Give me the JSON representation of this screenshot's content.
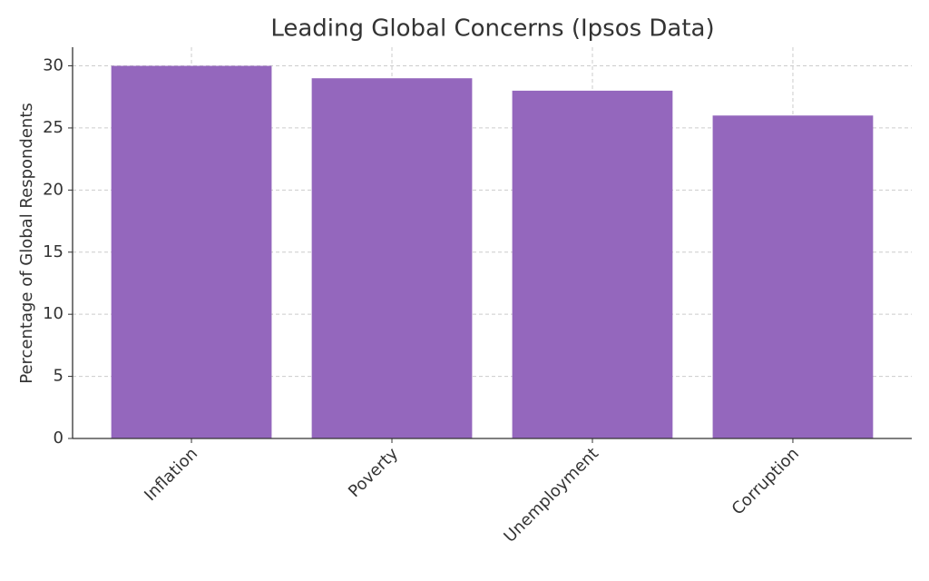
{
  "chart_data": {
    "type": "bar",
    "title": "Leading Global Concerns (Ipsos Data)",
    "y_label": "Percentage of Global Respondents",
    "categories": [
      "Inflation",
      "Poverty",
      "Unemployment",
      "Corruption"
    ],
    "values": [
      30,
      29,
      28,
      26
    ],
    "color": "#9467bd",
    "ylim": [
      0,
      31.5
    ],
    "yticks": [
      0,
      5,
      10,
      15,
      20,
      25,
      30
    ],
    "grid": true
  }
}
